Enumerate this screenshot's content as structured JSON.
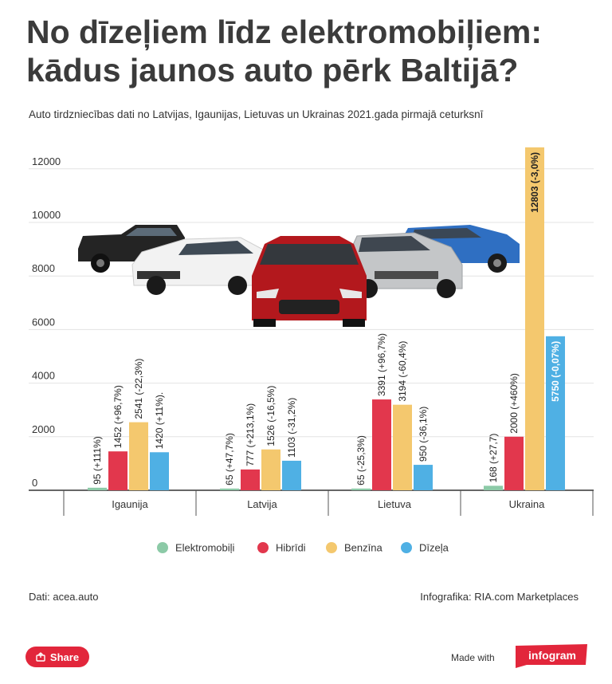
{
  "header": {
    "title": "No dīzeļiem līdz elektromobiļiem: kādus jaunos auto pērk Baltijā?",
    "subtitle": "Auto tirdzniecības dati no Latvijas, Igaunijas, Lietuvas un Ukrainas 2021.gada pirmajā ceturksnī"
  },
  "chart_data": {
    "type": "bar",
    "categories": [
      "Igaunija",
      "Latvija",
      "Lietuva",
      "Ukraina"
    ],
    "ylim": [
      0,
      13000
    ],
    "yticks": [
      0,
      2000,
      4000,
      6000,
      8000,
      10000,
      12000
    ],
    "grid": true,
    "legend_position": "bottom",
    "series": [
      {
        "name": "Elektromobiļi",
        "color": "#8ccaa7",
        "values": [
          95,
          65,
          65,
          168
        ],
        "labels": [
          "95 (+111%)",
          "65 (+47,7%)",
          "65 (-25,3%)",
          "168 (+27,7)"
        ]
      },
      {
        "name": "Hibrīdi",
        "color": "#e2374d",
        "values": [
          1452,
          777,
          3391,
          2000
        ],
        "labels": [
          "1452 (+96,7%)",
          "777 (+213,1%)",
          "3391 (+96,7%)",
          "2000 (+460%)"
        ]
      },
      {
        "name": "Benzīna",
        "color": "#f4c86e",
        "values": [
          2541,
          1526,
          3194,
          12803
        ],
        "labels": [
          "2541 (-22,3%)",
          "1526 (-16,5%)",
          "3194 (-60,4%)",
          "12803 (-3,0%)"
        ]
      },
      {
        "name": "Dīzeļa",
        "color": "#4fb0e4",
        "values": [
          1420,
          1103,
          950,
          5750
        ],
        "labels": [
          "1420 (+11%).",
          "1103 (-31,2%)",
          "950 (-36,1%)",
          "5750 (-0,07%)"
        ]
      }
    ]
  },
  "footer": {
    "source_left": "Dati: acea.auto",
    "source_right": "Infografika: RIA.com Marketplaces",
    "share_label": "Share",
    "made_with": "Made with",
    "brand": "infogram"
  }
}
